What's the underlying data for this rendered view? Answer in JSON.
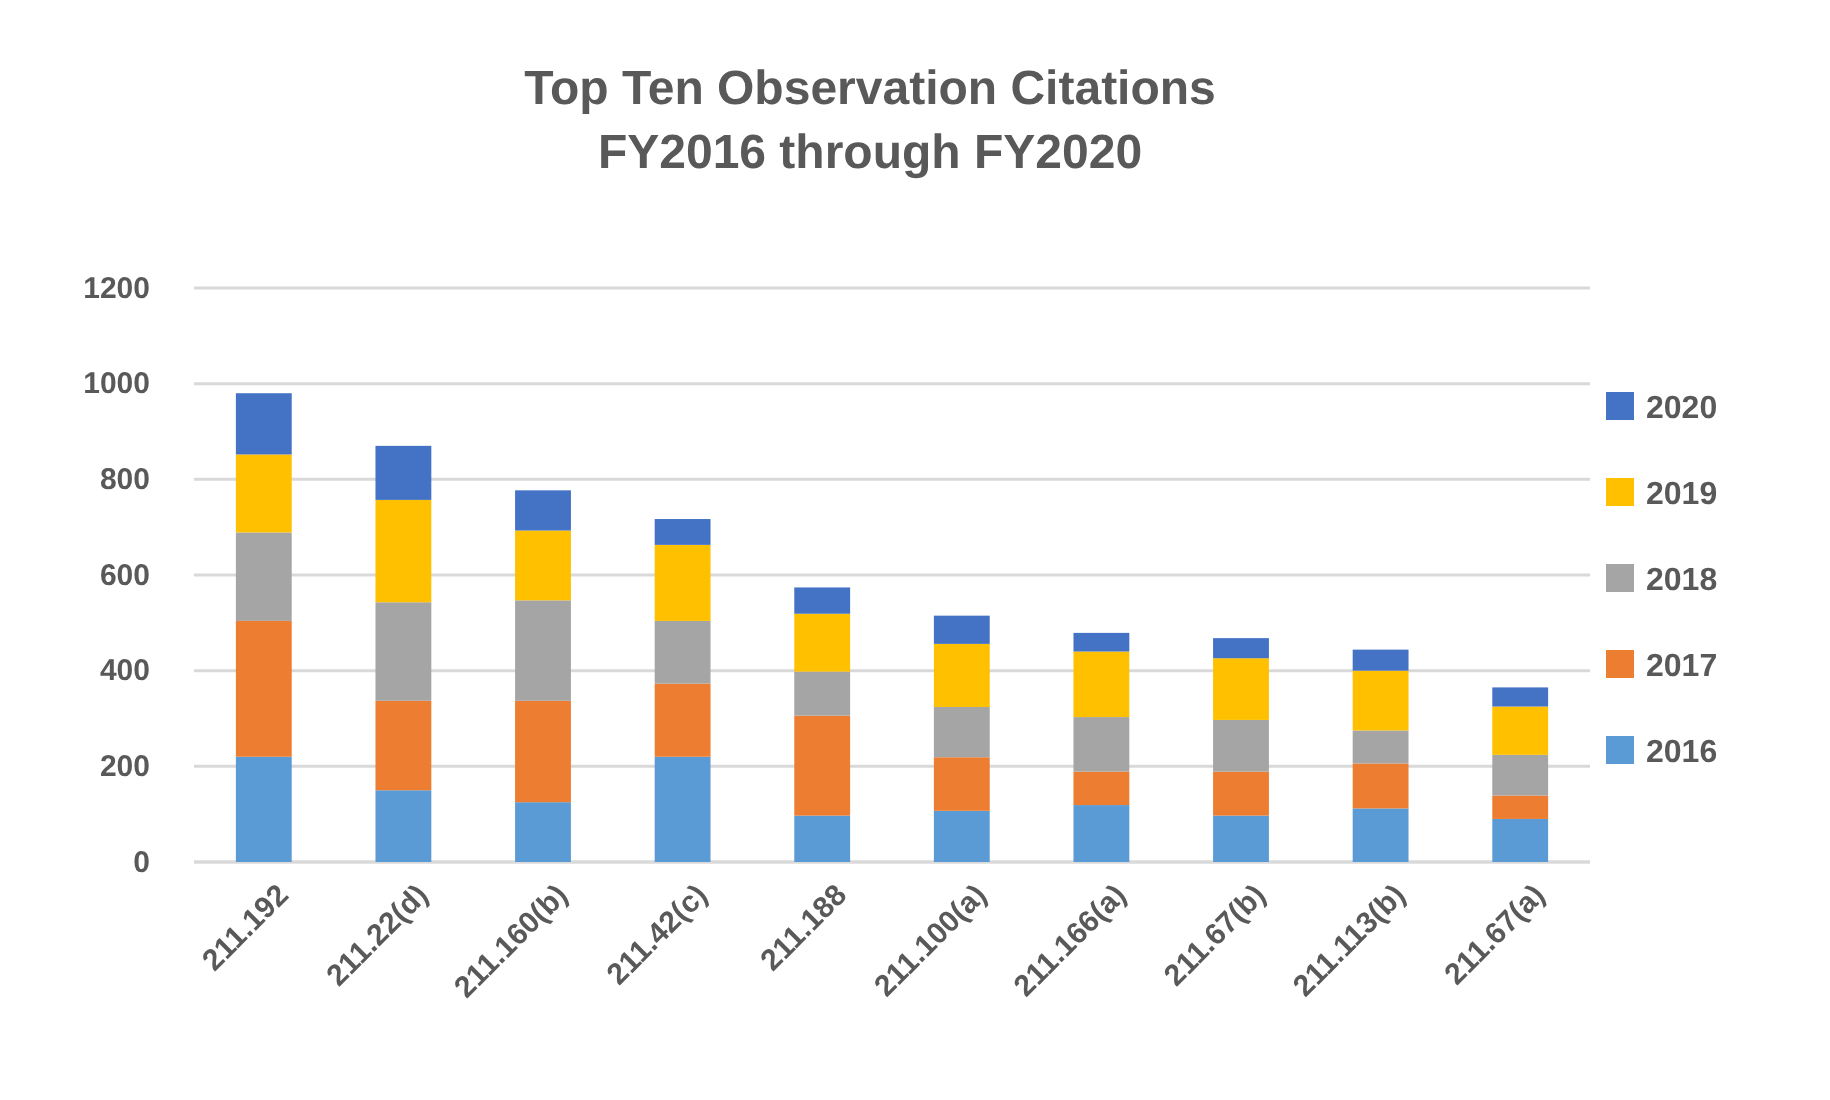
{
  "chart_data": {
    "type": "bar",
    "title": "Top Ten Observation Citations\nFY2016 through FY2020",
    "categories": [
      "211.192",
      "211.22(d)",
      "211.160(b)",
      "211.42(c)",
      "211.188",
      "211.100(a)",
      "211.166(a)",
      "211.67(b)",
      "211.113(b)",
      "211.67(a)"
    ],
    "stacked": true,
    "series": [
      {
        "name": "2016",
        "color": "#5b9bd5",
        "values": [
          220,
          150,
          125,
          220,
          97,
          107,
          119,
          97,
          112,
          90
        ]
      },
      {
        "name": "2017",
        "color": "#ed7d31",
        "values": [
          284,
          187,
          212,
          153,
          209,
          112,
          70,
          92,
          94,
          49
        ]
      },
      {
        "name": "2018",
        "color": "#a5a5a5",
        "values": [
          185,
          206,
          210,
          131,
          92,
          105,
          114,
          108,
          69,
          85
        ]
      },
      {
        "name": "2019",
        "color": "#ffc000",
        "values": [
          163,
          214,
          146,
          159,
          121,
          132,
          137,
          129,
          125,
          101
        ]
      },
      {
        "name": "2020",
        "color": "#4472c4",
        "values": [
          128,
          113,
          84,
          54,
          55,
          59,
          39,
          42,
          44,
          40
        ]
      }
    ],
    "ylim": [
      0,
      1200
    ],
    "yticks": [
      0,
      200,
      400,
      600,
      800,
      1000,
      1200
    ],
    "grid": "y",
    "legend": "right"
  }
}
